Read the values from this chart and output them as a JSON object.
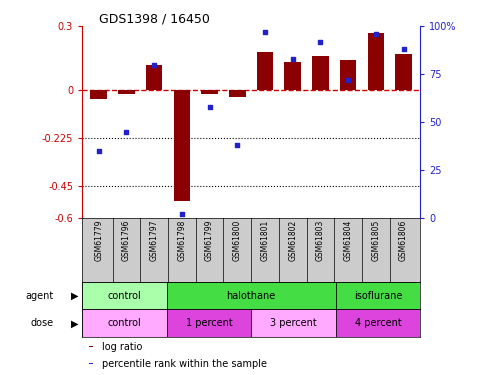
{
  "title": "GDS1398 / 16450",
  "samples": [
    "GSM61779",
    "GSM61796",
    "GSM61797",
    "GSM61798",
    "GSM61799",
    "GSM61800",
    "GSM61801",
    "GSM61802",
    "GSM61803",
    "GSM61804",
    "GSM61805",
    "GSM61806"
  ],
  "log_ratio": [
    -0.04,
    -0.02,
    0.12,
    -0.52,
    -0.02,
    -0.03,
    0.18,
    0.13,
    0.16,
    0.14,
    0.27,
    0.17
  ],
  "pct_rank": [
    35,
    45,
    80,
    2,
    58,
    38,
    97,
    83,
    92,
    72,
    96,
    88
  ],
  "ylim_left": [
    -0.6,
    0.3
  ],
  "ylim_right": [
    0,
    100
  ],
  "yticks_left": [
    0.3,
    0,
    -0.225,
    -0.45,
    -0.6
  ],
  "ytick_labels_left": [
    "0.3",
    "0",
    "-0.225",
    "-0.45",
    "-0.6"
  ],
  "yticks_right": [
    100,
    75,
    50,
    25,
    0
  ],
  "hlines": [
    -0.225,
    -0.45
  ],
  "bar_color": "#8B0000",
  "dot_color": "#2222CC",
  "dashed_line_color": "#CC0000",
  "agent_groups": [
    {
      "label": "control",
      "start": 0,
      "end": 3,
      "color": "#AAFFAA"
    },
    {
      "label": "halothane",
      "start": 3,
      "end": 9,
      "color": "#44DD44"
    },
    {
      "label": "isoflurane",
      "start": 9,
      "end": 12,
      "color": "#44DD44"
    }
  ],
  "dose_groups": [
    {
      "label": "control",
      "start": 0,
      "end": 3,
      "color": "#FFAAFF"
    },
    {
      "label": "1 percent",
      "start": 3,
      "end": 6,
      "color": "#DD44DD"
    },
    {
      "label": "3 percent",
      "start": 6,
      "end": 9,
      "color": "#FFAAFF"
    },
    {
      "label": "4 percent",
      "start": 9,
      "end": 12,
      "color": "#DD44DD"
    }
  ],
  "legend_items": [
    {
      "label": "log ratio",
      "color": "#8B0000"
    },
    {
      "label": "percentile rank within the sample",
      "color": "#2222CC"
    }
  ]
}
